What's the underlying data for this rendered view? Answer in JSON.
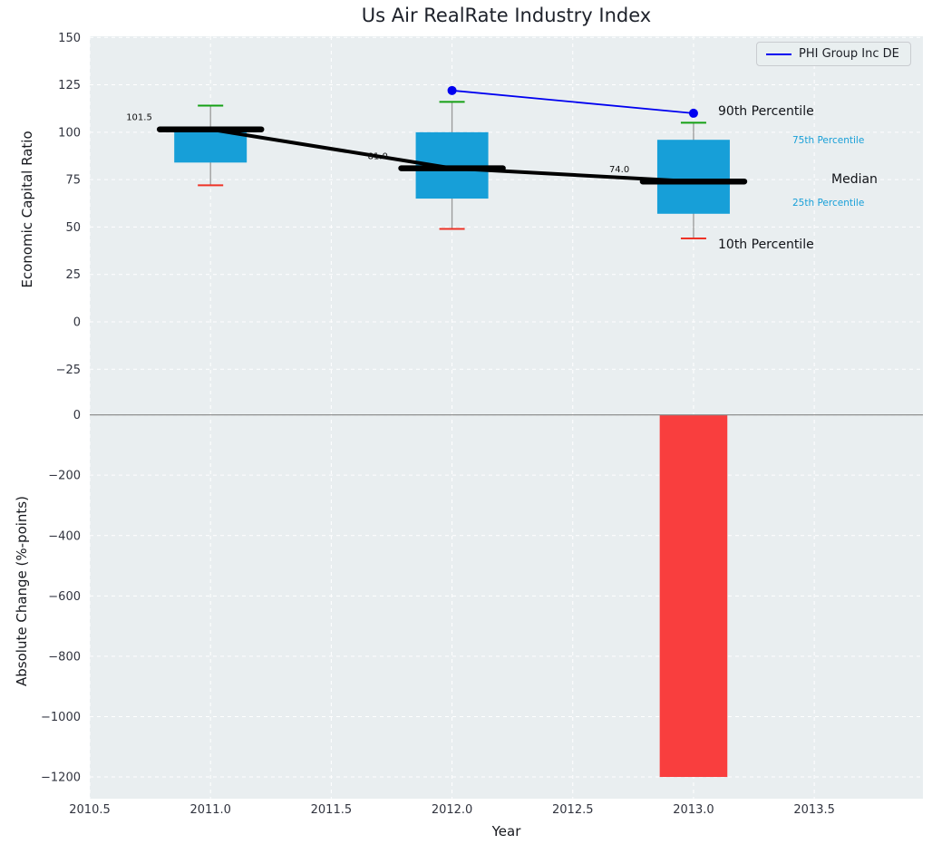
{
  "figure": {
    "title": "Us Air RealRate Industry Index",
    "legend": {
      "label": "PHI Group Inc DE"
    }
  },
  "annotations": {
    "p90": "90th Percentile",
    "p75": "75th Percentile",
    "median": "Median",
    "p25": "25th Percentile",
    "p10": "10th Percentile"
  },
  "chart_data": [
    {
      "type": "boxplot",
      "title": "Us Air RealRate Industry Index",
      "ylabel": "Economic Capital Ratio",
      "xlim": [
        2010.5,
        2013.95
      ],
      "ylim": [
        -32.5,
        150.6
      ],
      "xticks": [
        2010.5,
        2011.0,
        2011.5,
        2012.0,
        2012.5,
        2013.0,
        2013.5
      ],
      "yticks": [
        150,
        125,
        100,
        75,
        50,
        25,
        0,
        -25
      ],
      "grid": true,
      "bg_color": "#e9eef0",
      "box_color": "#179fd8",
      "median_color": "#000000",
      "whisker_color": "#999999",
      "cap_top_color": "#14a014",
      "cap_bottom_color": "#ee3226",
      "boxes": [
        {
          "x": 2011,
          "p10": 72,
          "p25": 84,
          "median": 101.5,
          "p75": 101,
          "p90": 114
        },
        {
          "x": 2012,
          "p10": 49,
          "p25": 65,
          "median": 81.0,
          "p75": 100,
          "p90": 116
        },
        {
          "x": 2013,
          "p10": 44,
          "p25": 57,
          "median": 74.0,
          "p75": 96,
          "p90": 105
        }
      ],
      "series": [
        {
          "name": "PHI Group Inc DE",
          "x": [
            2012,
            2013
          ],
          "y": [
            122,
            110
          ],
          "color": "#0000f0",
          "marker": "circle"
        }
      ],
      "legend_position": "upper right"
    },
    {
      "type": "bar",
      "xlabel": "Year",
      "ylabel": "Absolute Change (%-points)",
      "xlim": [
        2010.5,
        2013.95
      ],
      "ylim": [
        -1272,
        104
      ],
      "xticks": [
        2010.5,
        2011.0,
        2011.5,
        2012.0,
        2012.5,
        2013.0,
        2013.5
      ],
      "yticks": [
        0,
        -200,
        -400,
        -600,
        -800,
        -1000,
        -1200
      ],
      "grid": true,
      "bg_color": "#e9eef0",
      "bar_color": "#f93e3e",
      "bars": [
        {
          "x": 2013,
          "value": -1200,
          "width": 0.28
        }
      ],
      "zero_line": true
    }
  ]
}
